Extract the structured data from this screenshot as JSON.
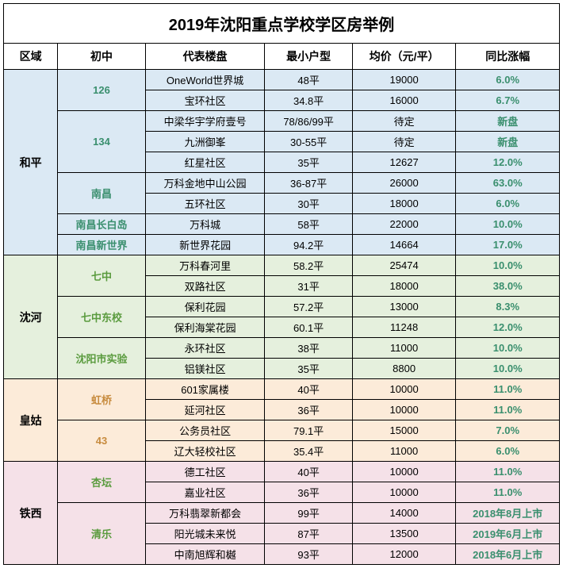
{
  "title": "2019年沈阳重点学校学区房举例",
  "headers": {
    "district": "区域",
    "school": "初中",
    "project": "代表楼盘",
    "size": "最小户型",
    "price": "均价（元/平）",
    "change": "同比涨幅"
  },
  "colors": {
    "header_bg": "#ffffff",
    "school_text_blue": "#3a8f6e",
    "change_green": "#3a8f6e",
    "d1_bg": "#dbe9f4",
    "d1_school": "#3a8f6e",
    "d2_bg": "#e5f0dd",
    "d2_school": "#5a9b3e",
    "d3_bg": "#fcebd9",
    "d3_school": "#c78b3e",
    "d4_bg": "#f5e1e8",
    "d4_school": "#5a9b3e"
  },
  "districts": [
    {
      "name": "和平",
      "bg": "#dbe9f4",
      "schoolColor": "#3a8f6e",
      "schools": [
        {
          "name": "126",
          "rows": [
            {
              "project": "OneWorld世界城",
              "size": "48平",
              "price": "19000",
              "change": "6.0%"
            },
            {
              "project": "宝环社区",
              "size": "34.8平",
              "price": "16000",
              "change": "6.7%"
            }
          ]
        },
        {
          "name": "134",
          "rows": [
            {
              "project": "中梁华宇学府壹号",
              "size": "78/86/99平",
              "price": "待定",
              "change": "新盘"
            },
            {
              "project": "九洲御峯",
              "size": "30-55平",
              "price": "待定",
              "change": "新盘"
            },
            {
              "project": "红星社区",
              "size": "35平",
              "price": "12627",
              "change": "12.0%"
            }
          ]
        },
        {
          "name": "南昌",
          "rows": [
            {
              "project": "万科金地中山公园",
              "size": "36-87平",
              "price": "26000",
              "change": "63.0%"
            },
            {
              "project": "五环社区",
              "size": "30平",
              "price": "18000",
              "change": "6.0%"
            }
          ]
        },
        {
          "name": "南昌长白岛",
          "rows": [
            {
              "project": "万科城",
              "size": "58平",
              "price": "22000",
              "change": "10.0%"
            }
          ]
        },
        {
          "name": "南昌新世界",
          "rows": [
            {
              "project": "新世界花园",
              "size": "94.2平",
              "price": "14664",
              "change": "17.0%"
            }
          ]
        }
      ]
    },
    {
      "name": "沈河",
      "bg": "#e5f0dd",
      "schoolColor": "#5a9b3e",
      "schools": [
        {
          "name": "七中",
          "rows": [
            {
              "project": "万科春河里",
              "size": "58.2平",
              "price": "25474",
              "change": "10.0%"
            },
            {
              "project": "双路社区",
              "size": "31平",
              "price": "18000",
              "change": "38.0%"
            }
          ]
        },
        {
          "name": "七中东校",
          "rows": [
            {
              "project": "保利花园",
              "size": "57.2平",
              "price": "13000",
              "change": "8.3%"
            },
            {
              "project": "保利海棠花园",
              "size": "60.1平",
              "price": "11248",
              "change": "12.0%"
            }
          ]
        },
        {
          "name": "沈阳市实验",
          "rows": [
            {
              "project": "永环社区",
              "size": "38平",
              "price": "11000",
              "change": "10.0%"
            },
            {
              "project": "铝镁社区",
              "size": "35平",
              "price": "8800",
              "change": "10.0%"
            }
          ]
        }
      ]
    },
    {
      "name": "皇姑",
      "bg": "#fcebd9",
      "schoolColor": "#c78b3e",
      "schools": [
        {
          "name": "虹桥",
          "rows": [
            {
              "project": "601家属楼",
              "size": "40平",
              "price": "10000",
              "change": "11.0%"
            },
            {
              "project": "延河社区",
              "size": "36平",
              "price": "10000",
              "change": "11.0%"
            }
          ]
        },
        {
          "name": "43",
          "rows": [
            {
              "project": "公务员社区",
              "size": "79.1平",
              "price": "15000",
              "change": "7.0%"
            },
            {
              "project": "辽大轻校社区",
              "size": "35.4平",
              "price": "11000",
              "change": "6.0%"
            }
          ]
        }
      ]
    },
    {
      "name": "铁西",
      "bg": "#f5e1e8",
      "schoolColor": "#5a9b3e",
      "schools": [
        {
          "name": "杏坛",
          "rows": [
            {
              "project": "德工社区",
              "size": "40平",
              "price": "10000",
              "change": "11.0%"
            },
            {
              "project": "嘉业社区",
              "size": "36平",
              "price": "10000",
              "change": "11.0%"
            }
          ]
        },
        {
          "name": "清乐",
          "rows": [
            {
              "project": "万科翡翠新都会",
              "size": "99平",
              "price": "14000",
              "change": "2018年8月上市"
            },
            {
              "project": "阳光城未来悦",
              "size": "87平",
              "price": "13500",
              "change": "2019年6月上市"
            },
            {
              "project": "中南旭辉和樾",
              "size": "93平",
              "price": "12000",
              "change": "2018年6月上市"
            }
          ]
        }
      ]
    }
  ]
}
